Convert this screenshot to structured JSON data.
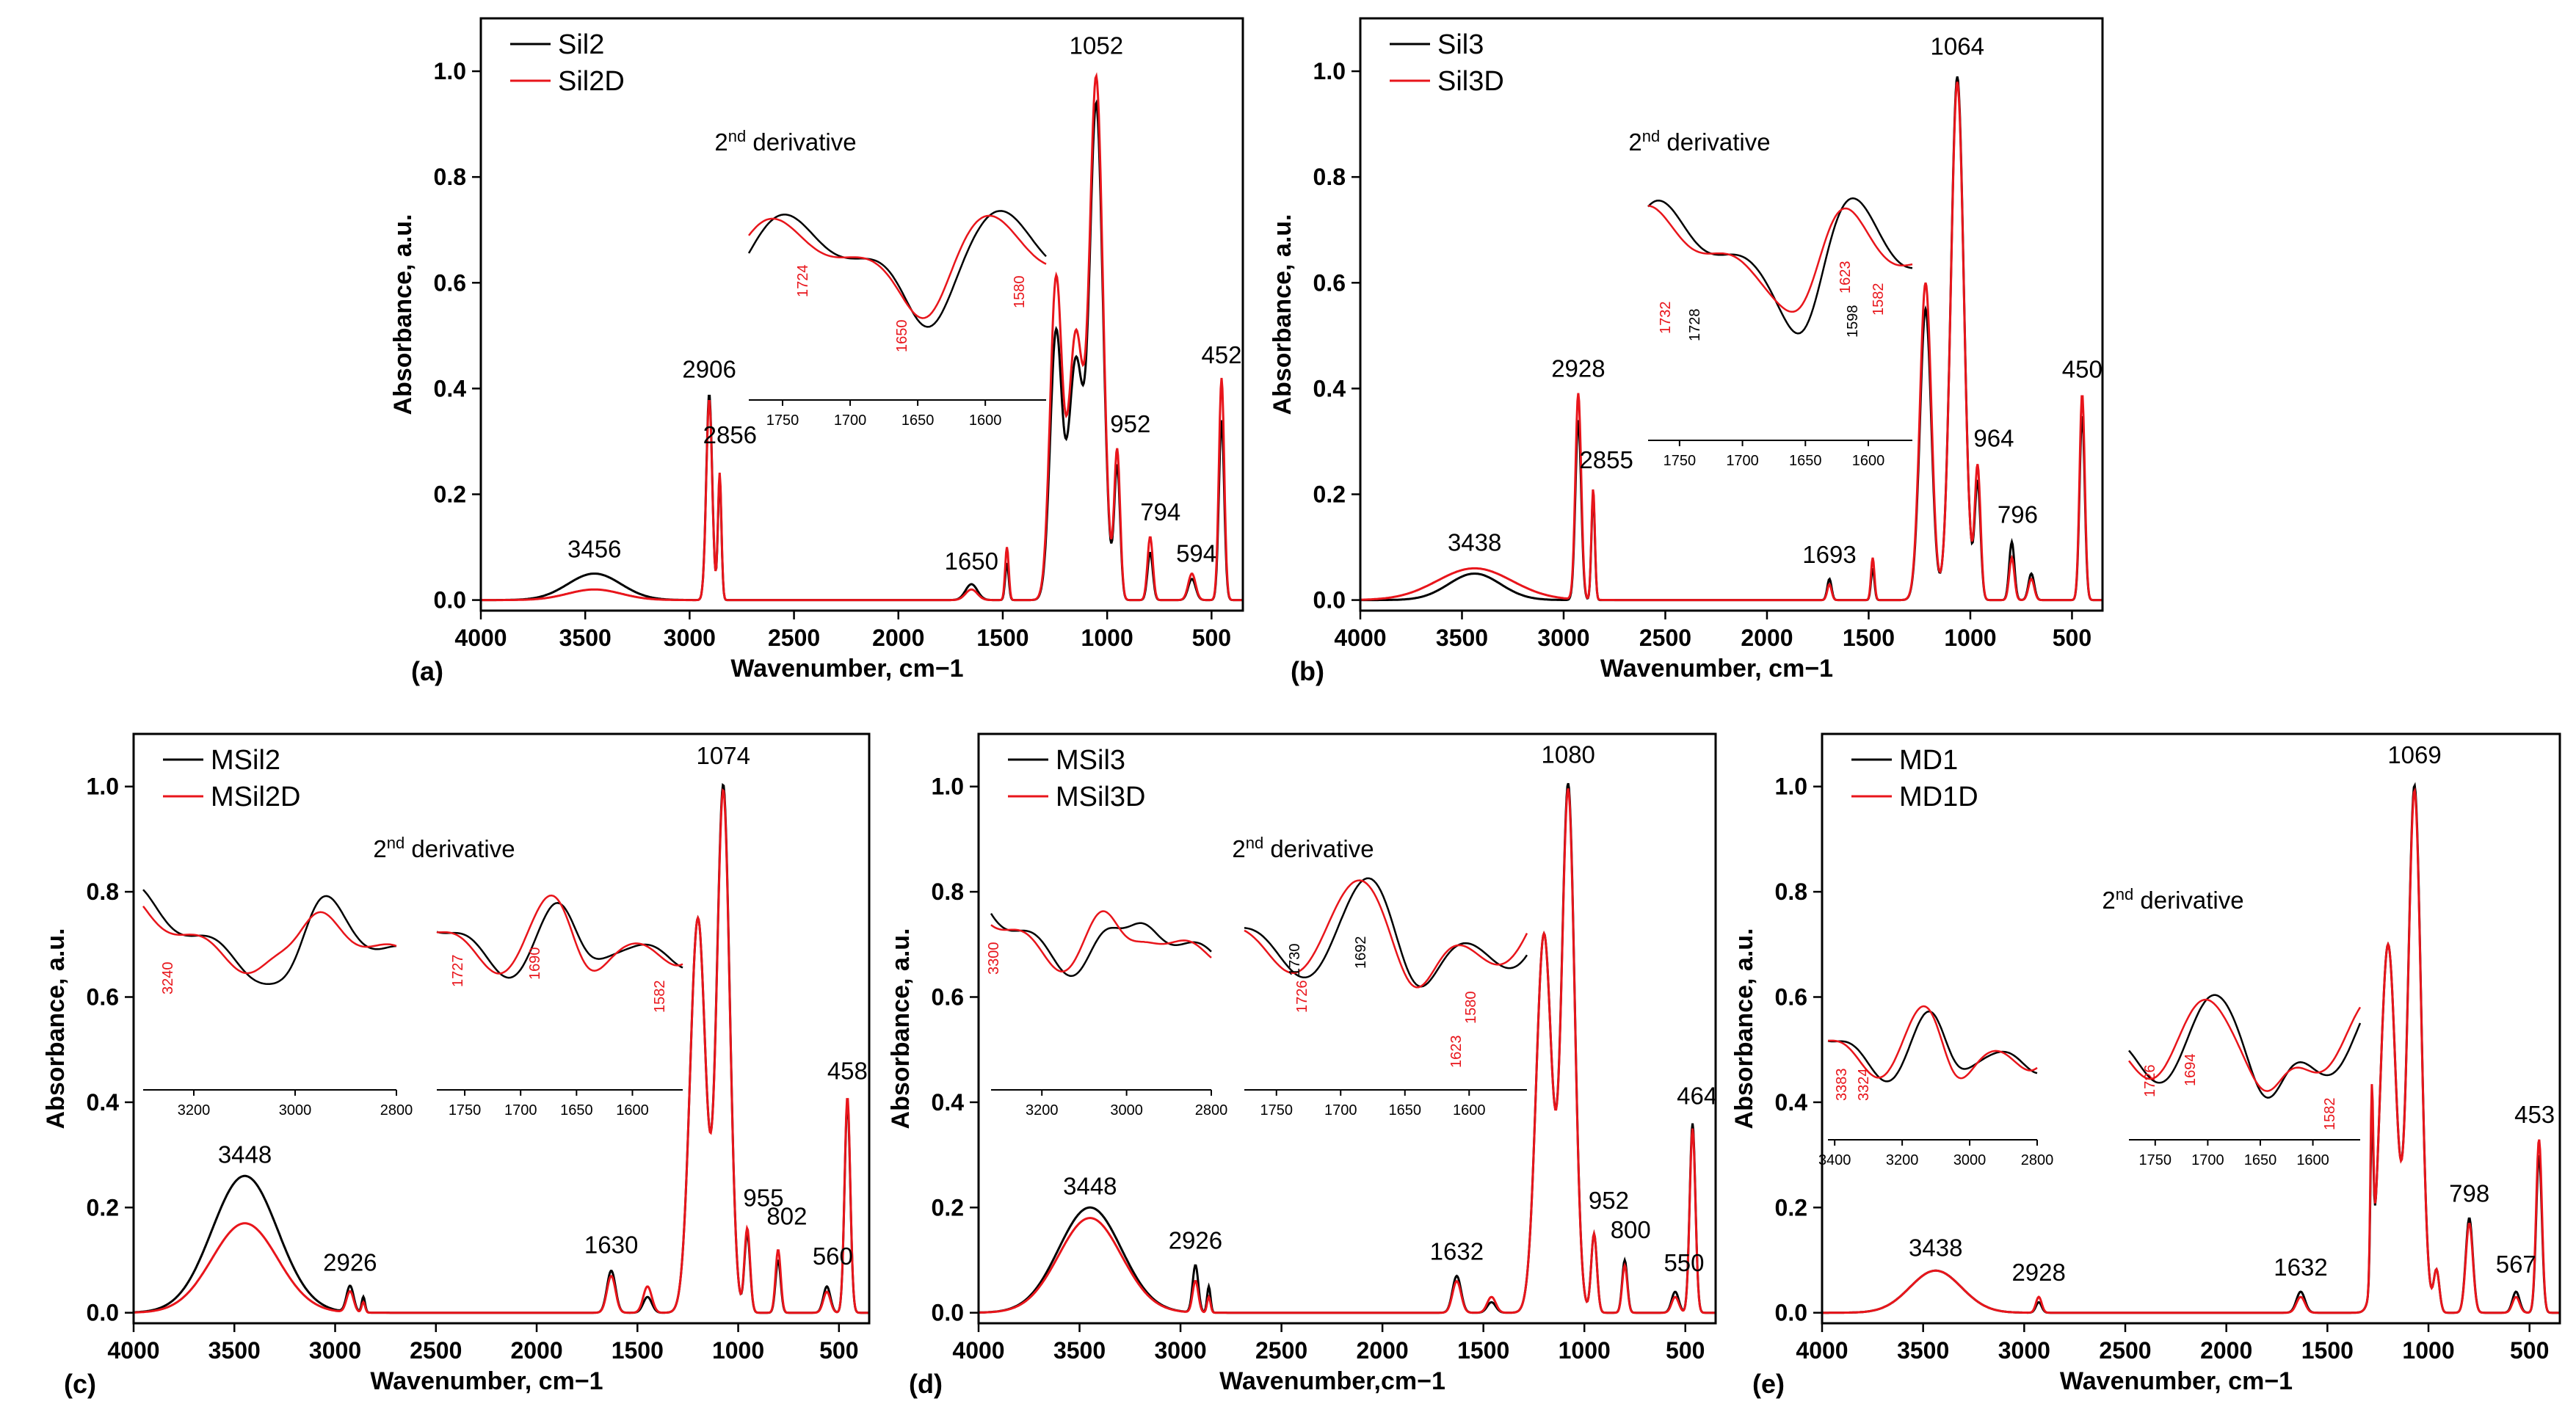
{
  "colors": {
    "series_1": "#000000",
    "series_2": "#e8151b"
  },
  "chart_data": [
    {
      "type": "line",
      "panel_label": "(a)",
      "xlabel": "Wavenumber, cm−1",
      "ylabel": "Absorbance, a.u.",
      "xlim": [
        4000,
        350
      ],
      "ylim": [
        -0.02,
        1.1
      ],
      "x_ticks": [
        "4000",
        "3500",
        "3000",
        "2500",
        "2000",
        "1500",
        "1000",
        "500"
      ],
      "y_ticks": [
        "0.0",
        "0.2",
        "0.4",
        "0.6",
        "0.8",
        "1.0"
      ],
      "series": [
        {
          "name": "Sil2",
          "color": "#000000",
          "peaks": [
            [
              3456,
              0.05,
              180
            ],
            [
              2906,
              0.39,
              20
            ],
            [
              2856,
              0.23,
              12
            ],
            [
              1650,
              0.03,
              40
            ],
            [
              1480,
              0.07,
              12
            ],
            [
              1245,
              0.5,
              40
            ],
            [
              1150,
              0.45,
              50
            ],
            [
              1052,
              0.93,
              45
            ],
            [
              952,
              0.25,
              20
            ],
            [
              794,
              0.09,
              18
            ],
            [
              594,
              0.04,
              25
            ],
            [
              452,
              0.34,
              18
            ]
          ]
        },
        {
          "name": "Sil2D",
          "color": "#e8151b",
          "peaks": [
            [
              3456,
              0.02,
              180
            ],
            [
              2906,
              0.38,
              20
            ],
            [
              2856,
              0.24,
              12
            ],
            [
              1650,
              0.02,
              40
            ],
            [
              1480,
              0.1,
              12
            ],
            [
              1245,
              0.6,
              40
            ],
            [
              1150,
              0.5,
              50
            ],
            [
              1052,
              0.98,
              45
            ],
            [
              952,
              0.28,
              20
            ],
            [
              794,
              0.12,
              18
            ],
            [
              594,
              0.05,
              25
            ],
            [
              452,
              0.42,
              18
            ]
          ]
        }
      ],
      "annotations": [
        "3456",
        "2906",
        "2856",
        "1650",
        "1052",
        "952",
        "794",
        "594",
        "452"
      ],
      "inset": {
        "title": "2nd derivative",
        "ranges": [
          {
            "xlim": [
              1775,
              1555
            ],
            "ticks": [
              "1750",
              "1700",
              "1650",
              "1600"
            ]
          }
        ],
        "labels": [
          {
            "text": "1724",
            "color": "#e8151b"
          },
          {
            "text": "1650",
            "color": "#e8151b"
          },
          {
            "text": "1580",
            "color": "#e8151b"
          }
        ]
      }
    },
    {
      "type": "line",
      "panel_label": "(b)",
      "xlabel": "Wavenumber, cm−1",
      "ylabel": "Absorbance, a.u.",
      "xlim": [
        4000,
        350
      ],
      "ylim": [
        -0.02,
        1.1
      ],
      "x_ticks": [
        "4000",
        "3500",
        "3000",
        "2500",
        "2000",
        "1500",
        "1000",
        "500"
      ],
      "y_ticks": [
        "0.0",
        "0.2",
        "0.4",
        "0.6",
        "0.8",
        "1.0"
      ],
      "series": [
        {
          "name": "Sil3",
          "color": "#000000",
          "peaks": [
            [
              3438,
              0.05,
              180
            ],
            [
              2928,
              0.34,
              20
            ],
            [
              2855,
              0.2,
              12
            ],
            [
              1693,
              0.04,
              15
            ],
            [
              1480,
              0.06,
              12
            ],
            [
              1220,
              0.55,
              40
            ],
            [
              1064,
              0.99,
              45
            ],
            [
              964,
              0.22,
              20
            ],
            [
              796,
              0.11,
              18
            ],
            [
              700,
              0.05,
              20
            ],
            [
              450,
              0.35,
              18
            ]
          ]
        },
        {
          "name": "Sil3D",
          "color": "#e8151b",
          "peaks": [
            [
              3438,
              0.06,
              260
            ],
            [
              2928,
              0.39,
              20
            ],
            [
              2855,
              0.21,
              12
            ],
            [
              1693,
              0.03,
              15
            ],
            [
              1480,
              0.08,
              12
            ],
            [
              1220,
              0.6,
              40
            ],
            [
              1064,
              0.98,
              45
            ],
            [
              964,
              0.25,
              20
            ],
            [
              796,
              0.08,
              18
            ],
            [
              700,
              0.04,
              20
            ],
            [
              450,
              0.39,
              18
            ]
          ]
        }
      ],
      "annotations": [
        "3438",
        "2928",
        "2855",
        "1693",
        "1064",
        "964",
        "796",
        "450"
      ],
      "inset": {
        "title": "2nd derivative",
        "ranges": [
          {
            "xlim": [
              1775,
              1565
            ],
            "ticks": [
              "1750",
              "1700",
              "1650",
              "1600"
            ]
          }
        ],
        "labels": [
          {
            "text": "1732",
            "color": "#e8151b"
          },
          {
            "text": "1728",
            "color": "#000000"
          },
          {
            "text": "1623",
            "color": "#e8151b"
          },
          {
            "text": "1598",
            "color": "#000000"
          },
          {
            "text": "1582",
            "color": "#e8151b"
          }
        ]
      }
    },
    {
      "type": "line",
      "panel_label": "(c)",
      "xlabel": "Wavenumber, cm−1",
      "ylabel": "Absorbance, a.u.",
      "xlim": [
        4000,
        350
      ],
      "ylim": [
        -0.02,
        1.1
      ],
      "x_ticks": [
        "4000",
        "3500",
        "3000",
        "2500",
        "2000",
        "1500",
        "1000",
        "500"
      ],
      "y_ticks": [
        "0.0",
        "0.2",
        "0.4",
        "0.6",
        "0.8",
        "1.0"
      ],
      "series": [
        {
          "name": "MSil2",
          "color": "#000000",
          "peaks": [
            [
              3448,
              0.26,
              230
            ],
            [
              2926,
              0.05,
              25
            ],
            [
              2860,
              0.03,
              12
            ],
            [
              1630,
              0.08,
              30
            ],
            [
              1450,
              0.03,
              30
            ],
            [
              1200,
              0.75,
              55
            ],
            [
              1074,
              1.0,
              45
            ],
            [
              955,
              0.15,
              20
            ],
            [
              802,
              0.1,
              18
            ],
            [
              560,
              0.05,
              25
            ],
            [
              458,
              0.4,
              20
            ]
          ]
        },
        {
          "name": "MSil2D",
          "color": "#e8151b",
          "peaks": [
            [
              3448,
              0.17,
              230
            ],
            [
              2926,
              0.04,
              25
            ],
            [
              2860,
              0.02,
              12
            ],
            [
              1630,
              0.07,
              30
            ],
            [
              1450,
              0.05,
              30
            ],
            [
              1200,
              0.75,
              55
            ],
            [
              1074,
              0.99,
              45
            ],
            [
              955,
              0.16,
              20
            ],
            [
              802,
              0.12,
              18
            ],
            [
              560,
              0.04,
              25
            ],
            [
              458,
              0.41,
              20
            ]
          ]
        }
      ],
      "annotations": [
        "3448",
        "2926",
        "1630",
        "1074",
        "955",
        "802",
        "560",
        "458"
      ],
      "inset": {
        "title": "2nd derivative",
        "ranges": [
          {
            "xlim": [
              3300,
              2800
            ],
            "ticks": [
              "3200",
              "3000",
              "2800"
            ]
          },
          {
            "xlim": [
              1775,
              1555
            ],
            "ticks": [
              "1750",
              "1700",
              "1650",
              "1600"
            ]
          }
        ],
        "labels": [
          {
            "text": "3240",
            "color": "#e8151b"
          },
          {
            "text": "1727",
            "color": "#e8151b"
          },
          {
            "text": "1690",
            "color": "#e8151b"
          },
          {
            "text": "1582",
            "color": "#e8151b"
          }
        ]
      }
    },
    {
      "type": "line",
      "panel_label": "(d)",
      "xlabel": "Wavenumber,cm−1",
      "ylabel": "Absorbance, a.u.",
      "xlim": [
        4000,
        350
      ],
      "ylim": [
        -0.02,
        1.1
      ],
      "x_ticks": [
        "4000",
        "3500",
        "3000",
        "2500",
        "2000",
        "1500",
        "1000",
        "500"
      ],
      "y_ticks": [
        "0.0",
        "0.2",
        "0.4",
        "0.6",
        "0.8",
        "1.0"
      ],
      "series": [
        {
          "name": "MSil3",
          "color": "#000000",
          "peaks": [
            [
              3448,
              0.2,
              220
            ],
            [
              2926,
              0.09,
              20
            ],
            [
              2860,
              0.05,
              12
            ],
            [
              1632,
              0.07,
              30
            ],
            [
              1460,
              0.02,
              30
            ],
            [
              1200,
              0.72,
              55
            ],
            [
              1080,
              1.0,
              45
            ],
            [
              952,
              0.15,
              20
            ],
            [
              800,
              0.1,
              18
            ],
            [
              550,
              0.04,
              25
            ],
            [
              464,
              0.36,
              20
            ]
          ]
        },
        {
          "name": "MSil3D",
          "color": "#e8151b",
          "peaks": [
            [
              3448,
              0.18,
              220
            ],
            [
              2926,
              0.06,
              20
            ],
            [
              2860,
              0.03,
              12
            ],
            [
              1632,
              0.06,
              30
            ],
            [
              1460,
              0.03,
              30
            ],
            [
              1200,
              0.72,
              55
            ],
            [
              1080,
              0.99,
              45
            ],
            [
              952,
              0.15,
              20
            ],
            [
              800,
              0.09,
              18
            ],
            [
              550,
              0.03,
              25
            ],
            [
              464,
              0.35,
              20
            ]
          ]
        }
      ],
      "annotations": [
        "3448",
        "2926",
        "1632",
        "1080",
        "952",
        "800",
        "550",
        "464"
      ],
      "inset": {
        "title": "2nd derivative",
        "ranges": [
          {
            "xlim": [
              3320,
              2800
            ],
            "ticks": [
              "3200",
              "3000",
              "2800"
            ]
          },
          {
            "xlim": [
              1775,
              1555
            ],
            "ticks": [
              "1750",
              "1700",
              "1650",
              "1600"
            ]
          }
        ],
        "labels": [
          {
            "text": "3300",
            "color": "#e8151b"
          },
          {
            "text": "1730",
            "color": "#000000"
          },
          {
            "text": "1692",
            "color": "#000000"
          },
          {
            "text": "1726",
            "color": "#e8151b"
          },
          {
            "text": "1623",
            "color": "#e8151b"
          },
          {
            "text": "1580",
            "color": "#e8151b"
          }
        ]
      }
    },
    {
      "type": "line",
      "panel_label": "(e)",
      "xlabel": "Wavenumber, cm−1",
      "ylabel": "Absorbance, a.u.",
      "xlim": [
        4000,
        350
      ],
      "ylim": [
        -0.02,
        1.1
      ],
      "x_ticks": [
        "4000",
        "3500",
        "3000",
        "2500",
        "2000",
        "1500",
        "1000",
        "500"
      ],
      "y_ticks": [
        "0.0",
        "0.2",
        "0.4",
        "0.6",
        "0.8",
        "1.0"
      ],
      "series": [
        {
          "name": "MD1",
          "color": "#000000",
          "peaks": [
            [
              3438,
              0.08,
              180
            ],
            [
              2928,
              0.02,
              20
            ],
            [
              1632,
              0.04,
              30
            ],
            [
              1280,
              0.3,
              10
            ],
            [
              1200,
              0.7,
              55
            ],
            [
              1069,
              1.0,
              45
            ],
            [
              960,
              0.08,
              20
            ],
            [
              798,
              0.18,
              25
            ],
            [
              567,
              0.04,
              25
            ],
            [
              453,
              0.3,
              20
            ]
          ]
        },
        {
          "name": "MD1D",
          "color": "#e8151b",
          "peaks": [
            [
              3438,
              0.08,
              180
            ],
            [
              2928,
              0.03,
              20
            ],
            [
              1632,
              0.03,
              30
            ],
            [
              1280,
              0.35,
              10
            ],
            [
              1200,
              0.7,
              55
            ],
            [
              1069,
              0.99,
              45
            ],
            [
              960,
              0.08,
              20
            ],
            [
              798,
              0.17,
              25
            ],
            [
              567,
              0.03,
              25
            ],
            [
              453,
              0.33,
              20
            ]
          ]
        }
      ],
      "annotations": [
        "3438",
        "2928",
        "1632",
        "1069",
        "798",
        "567",
        "453"
      ],
      "inset": {
        "title": "2nd derivative",
        "ranges": [
          {
            "xlim": [
              3420,
              2800
            ],
            "ticks": [
              "3400",
              "3200",
              "3000",
              "2800"
            ]
          },
          {
            "xlim": [
              1775,
              1555
            ],
            "ticks": [
              "1750",
              "1700",
              "1650",
              "1600"
            ]
          }
        ],
        "labels": [
          {
            "text": "3383",
            "color": "#e8151b"
          },
          {
            "text": "3324",
            "color": "#e8151b"
          },
          {
            "text": "1726",
            "color": "#e8151b"
          },
          {
            "text": "1694",
            "color": "#e8151b"
          },
          {
            "text": "1582",
            "color": "#e8151b"
          }
        ]
      }
    }
  ]
}
